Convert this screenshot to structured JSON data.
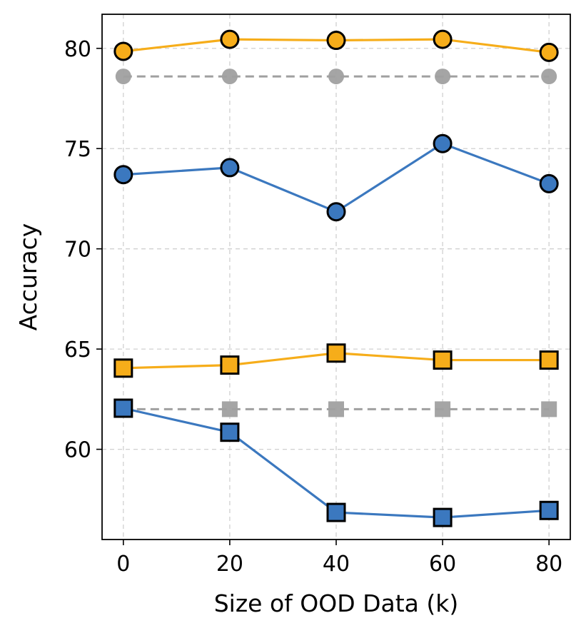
{
  "chart_data": {
    "type": "line",
    "xlabel": "Size of OOD Data (k)",
    "ylabel": "Accuracy",
    "x": [
      0,
      20,
      40,
      60,
      80
    ],
    "xticks": [
      "0",
      "20",
      "40",
      "60",
      "80"
    ],
    "yticks": [
      "60",
      "65",
      "70",
      "75",
      "80"
    ],
    "xlim": [
      -4,
      84
    ],
    "ylim": [
      55.5,
      81.7
    ],
    "grid": true,
    "series": [
      {
        "values": [
          79.85,
          80.45,
          80.4,
          80.45,
          79.8
        ],
        "color": "#f6ad1a",
        "marker": "circle",
        "line": "solid"
      },
      {
        "values": [
          78.6,
          78.6,
          78.6,
          78.6,
          78.6
        ],
        "color": "#a0a0a0",
        "marker": "circle",
        "line": "dashed"
      },
      {
        "values": [
          73.7,
          74.05,
          71.85,
          75.25,
          73.25
        ],
        "color": "#3b78bf",
        "marker": "circle",
        "line": "solid"
      },
      {
        "values": [
          64.05,
          64.2,
          64.8,
          64.45,
          64.45
        ],
        "color": "#f6ad1a",
        "marker": "square",
        "line": "solid"
      },
      {
        "values": [
          62.0,
          62.0,
          62.0,
          62.0,
          62.0
        ],
        "color": "#a0a0a0",
        "marker": "square",
        "line": "dashed"
      },
      {
        "values": [
          62.05,
          60.85,
          56.85,
          56.6,
          56.95
        ],
        "color": "#3b78bf",
        "marker": "square",
        "line": "solid"
      }
    ]
  }
}
